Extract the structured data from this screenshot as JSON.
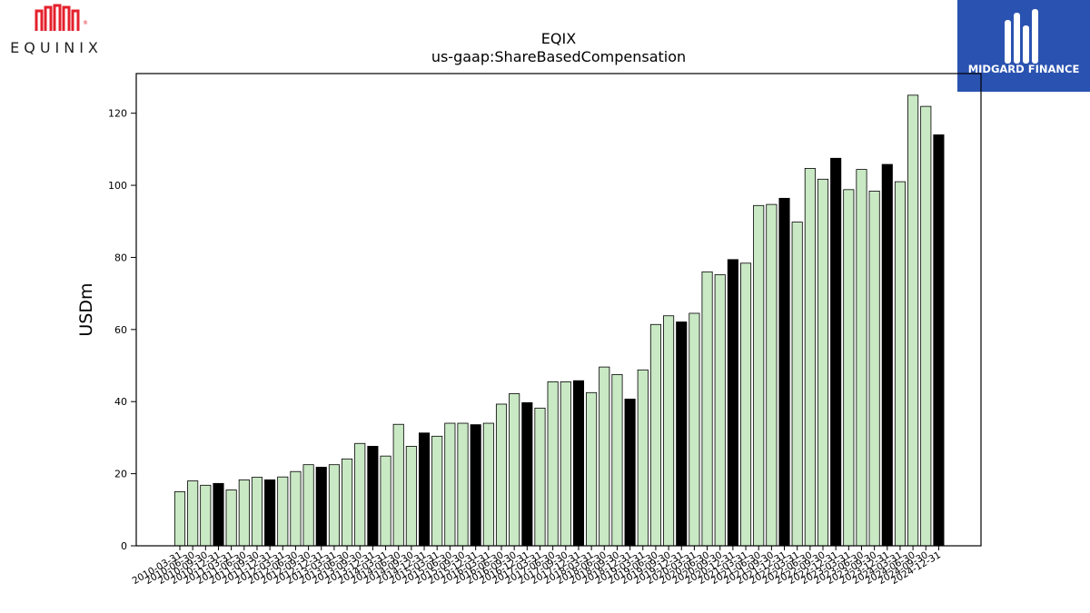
{
  "logos": {
    "left_text": "EQUINIX",
    "left_color": "#e4202c",
    "right_text": "MIDGARD FINANCE",
    "right_bg": "#2a52b0"
  },
  "chart_data": {
    "type": "bar",
    "title": "EQIX",
    "subtitle": "us-gaap:ShareBasedCompensation",
    "ylabel": "USDm",
    "xlabel": "",
    "ylim": [
      0,
      131
    ],
    "yticks": [
      0,
      20,
      40,
      60,
      80,
      100,
      120
    ],
    "grid": false,
    "colors": {
      "quarter": "#c9e8c4",
      "annual": "#000000"
    },
    "categories": [
      "2010-03-31",
      "2010-06-30",
      "2010-09-30",
      "2010-12-31",
      "2011-03-31",
      "2011-06-30",
      "2011-09-30",
      "2011-12-31",
      "2012-03-31",
      "2012-06-30",
      "2012-09-30",
      "2012-12-31",
      "2013-03-31",
      "2013-06-30",
      "2013-09-30",
      "2013-12-31",
      "2014-03-31",
      "2014-06-30",
      "2014-09-30",
      "2014-12-31",
      "2015-03-31",
      "2015-06-30",
      "2015-09-30",
      "2015-12-31",
      "2016-03-31",
      "2016-06-30",
      "2016-09-30",
      "2016-12-31",
      "2017-03-31",
      "2017-06-30",
      "2017-09-30",
      "2017-12-31",
      "2018-03-31",
      "2018-06-30",
      "2018-09-30",
      "2018-12-31",
      "2019-03-31",
      "2019-06-30",
      "2019-09-30",
      "2019-12-31",
      "2020-03-31",
      "2020-06-30",
      "2020-09-30",
      "2020-12-31",
      "2021-03-31",
      "2021-06-30",
      "2021-09-30",
      "2021-12-31",
      "2022-03-31",
      "2022-06-30",
      "2022-09-30",
      "2022-12-31",
      "2023-03-31",
      "2023-06-30",
      "2023-09-30",
      "2023-12-31",
      "2024-03-31",
      "2024-06-30",
      "2024-09-30",
      "2024-12-31"
    ],
    "values": [
      15.0,
      18.0,
      16.8,
      17.3,
      15.5,
      18.3,
      19.0,
      18.3,
      19.1,
      20.6,
      22.5,
      21.8,
      22.5,
      24.1,
      28.4,
      27.6,
      24.9,
      33.7,
      27.6,
      31.3,
      30.4,
      34.0,
      34.0,
      33.6,
      34.0,
      39.3,
      42.2,
      39.7,
      38.2,
      45.5,
      45.5,
      45.8,
      42.5,
      49.6,
      47.5,
      40.7,
      48.8,
      61.4,
      63.8,
      62.1,
      64.5,
      76.0,
      75.2,
      79.4,
      78.4,
      94.4,
      94.7,
      96.4,
      89.8,
      104.7,
      101.7,
      107.5,
      98.8,
      104.4,
      98.4,
      105.8,
      101.0,
      125.0,
      121.9,
      114.0
    ],
    "kinds": [
      "q",
      "q",
      "q",
      "a",
      "q",
      "q",
      "q",
      "a",
      "q",
      "q",
      "q",
      "a",
      "q",
      "q",
      "q",
      "a",
      "q",
      "q",
      "q",
      "a",
      "q",
      "q",
      "q",
      "a",
      "q",
      "q",
      "q",
      "a",
      "q",
      "q",
      "q",
      "a",
      "q",
      "q",
      "q",
      "a",
      "q",
      "q",
      "q",
      "a",
      "q",
      "q",
      "q",
      "a",
      "q",
      "q",
      "q",
      "a",
      "q",
      "q",
      "q",
      "a",
      "q",
      "q",
      "q",
      "a",
      "q",
      "q",
      "q",
      "a"
    ]
  }
}
